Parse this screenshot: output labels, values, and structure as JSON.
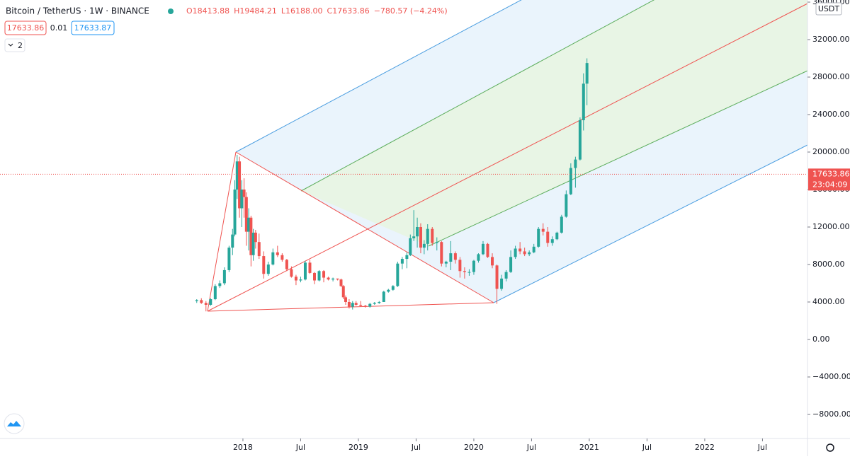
{
  "header": {
    "symbol": "Bitcoin / TetherUS · 1W · BINANCE",
    "ohlc": [
      "O18413.88",
      "H19484.21",
      "L16188.00",
      "C17633.86",
      "−780.57 (−4.24%)"
    ],
    "bid": "17633.86",
    "spread": "0.01",
    "ask": "17633.87",
    "indicators": "2"
  },
  "chart_data": {
    "type": "candlestick",
    "currency": "USDT",
    "up_color": "#26a69a",
    "down_color": "#ef5350",
    "last_price": {
      "value": 17633.86,
      "label": "17633.86"
    },
    "countdown": "23:04:09",
    "xlim": [
      2015.896,
      2022.89
    ],
    "xticks": [
      {
        "value": 2018,
        "label": "2018"
      },
      {
        "value": 2018.5,
        "label": "Jul"
      },
      {
        "value": 2019,
        "label": "2019"
      },
      {
        "value": 2019.5,
        "label": "Jul"
      },
      {
        "value": 2020,
        "label": "2020"
      },
      {
        "value": 2020.5,
        "label": "Jul"
      },
      {
        "value": 2021,
        "label": "2021"
      },
      {
        "value": 2021.5,
        "label": "Jul"
      },
      {
        "value": 2022,
        "label": "2022"
      },
      {
        "value": 2022.5,
        "label": "Jul"
      }
    ],
    "ylim": [
      -10566,
      36226
    ],
    "yticks": [
      {
        "value": -8000,
        "label": "−8000.00"
      },
      {
        "value": -4000,
        "label": "−4000.00"
      },
      {
        "value": 0,
        "label": "0.00"
      },
      {
        "value": 4000,
        "label": "4000.00"
      },
      {
        "value": 8000,
        "label": "8000.00"
      },
      {
        "value": 12000,
        "label": "12000.00"
      },
      {
        "value": 16000,
        "label": "16000.00"
      },
      {
        "value": 20000,
        "label": "20000.00"
      },
      {
        "value": 24000,
        "label": "24000.00"
      },
      {
        "value": 28000,
        "label": "28000.00"
      },
      {
        "value": 32000,
        "label": "32000.00"
      },
      {
        "value": 36000,
        "label": "36000.00"
      }
    ],
    "x": [
      2017.6,
      2017.64,
      2017.68,
      2017.72,
      2017.76,
      2017.8,
      2017.84,
      2017.88,
      2017.91,
      2017.93,
      2017.95,
      2017.97,
      2017.99,
      2018.01,
      2018.03,
      2018.05,
      2018.07,
      2018.09,
      2018.11,
      2018.14,
      2018.18,
      2018.22,
      2018.26,
      2018.3,
      2018.34,
      2018.38,
      2018.42,
      2018.46,
      2018.5,
      2018.54,
      2018.58,
      2018.62,
      2018.66,
      2018.7,
      2018.74,
      2018.78,
      2018.82,
      2018.85,
      2018.87,
      2018.89,
      2018.92,
      2018.95,
      2018.98,
      2019.02,
      2019.06,
      2019.1,
      2019.14,
      2019.18,
      2019.22,
      2019.26,
      2019.3,
      2019.34,
      2019.38,
      2019.42,
      2019.45,
      2019.48,
      2019.51,
      2019.54,
      2019.57,
      2019.6,
      2019.64,
      2019.68,
      2019.72,
      2019.76,
      2019.8,
      2019.84,
      2019.88,
      2019.92,
      2019.96,
      2020.0,
      2020.04,
      2020.08,
      2020.12,
      2020.16,
      2020.2,
      2020.24,
      2020.28,
      2020.32,
      2020.36,
      2020.4,
      2020.44,
      2020.48,
      2020.52,
      2020.56,
      2020.6,
      2020.64,
      2020.68,
      2020.72,
      2020.76,
      2020.8,
      2020.84,
      2020.88,
      2020.92,
      2020.95,
      2020.98
    ],
    "open": [
      4100,
      4200,
      3900,
      3700,
      4300,
      5700,
      6000,
      7400,
      9800,
      11200,
      16000,
      19000,
      14000,
      16000,
      15200,
      11500,
      13000,
      9000,
      11400,
      10400,
      8900,
      7000,
      8000,
      9300,
      9000,
      8500,
      7500,
      6700,
      6300,
      6400,
      8200,
      7100,
      6300,
      7300,
      6600,
      6400,
      6500,
      6400,
      5700,
      4500,
      4000,
      3500,
      3900,
      3700,
      3600,
      3500,
      3800,
      3900,
      4000,
      5100,
      5300,
      5700,
      8100,
      8600,
      9000,
      10800,
      11000,
      12000,
      9800,
      10200,
      11800,
      10300,
      10400,
      8100,
      8300,
      9200,
      8500,
      7300,
      7200,
      7200,
      8400,
      9100,
      10200,
      8800,
      7900,
      5400,
      6500,
      7200,
      8800,
      9700,
      9400,
      9100,
      9300,
      9900,
      11800,
      11500,
      10300,
      10700,
      11400,
      13100,
      15500,
      18300,
      19200,
      23400,
      27300
    ],
    "high": [
      4300,
      4400,
      4100,
      4400,
      5900,
      6300,
      7700,
      10000,
      11800,
      17000,
      19700,
      19500,
      17000,
      17200,
      15700,
      14000,
      13200,
      11800,
      11700,
      11300,
      9400,
      8300,
      9700,
      10000,
      9200,
      8600,
      7800,
      6900,
      6700,
      8400,
      8500,
      7200,
      7400,
      7400,
      6700,
      6600,
      6500,
      6500,
      5800,
      4700,
      4300,
      4100,
      4100,
      4100,
      3700,
      3900,
      4000,
      4100,
      5200,
      5400,
      5800,
      8300,
      8800,
      9300,
      11200,
      13800,
      13000,
      12400,
      10600,
      12300,
      12000,
      10900,
      10500,
      8400,
      10500,
      9400,
      8800,
      7700,
      7500,
      8500,
      9200,
      10500,
      10300,
      9200,
      8000,
      6900,
      7400,
      9500,
      10000,
      10400,
      9800,
      9500,
      10200,
      12000,
      12400,
      12000,
      11000,
      11500,
      13300,
      15900,
      18800,
      19500,
      23700,
      28400,
      30000
    ],
    "low": [
      3900,
      3800,
      3000,
      3600,
      4200,
      5500,
      5800,
      7200,
      9000,
      11000,
      15000,
      13000,
      12000,
      13000,
      10000,
      9500,
      7800,
      8400,
      9700,
      8600,
      6500,
      6800,
      7900,
      8800,
      8300,
      7300,
      6600,
      5800,
      6100,
      6300,
      7000,
      5900,
      6200,
      6100,
      6300,
      6200,
      6300,
      5600,
      4300,
      3700,
      3300,
      3200,
      3600,
      3500,
      3400,
      3400,
      3700,
      3800,
      4000,
      5000,
      5200,
      5600,
      7500,
      7600,
      8900,
      10500,
      9800,
      9200,
      9100,
      9500,
      10000,
      9500,
      7800,
      7700,
      7400,
      8100,
      6600,
      6500,
      6800,
      6900,
      8200,
      9000,
      8700,
      7600,
      3800,
      5200,
      6200,
      7100,
      8600,
      9100,
      8900,
      8900,
      9200,
      9800,
      11100,
      9900,
      10000,
      10600,
      11300,
      13000,
      15400,
      16200,
      19100,
      22300,
      25000
    ],
    "close": [
      4200,
      3900,
      3700,
      4300,
      5700,
      6000,
      7400,
      9800,
      11200,
      16000,
      19000,
      14000,
      16000,
      15200,
      11500,
      13000,
      9000,
      11400,
      10400,
      8900,
      7000,
      8000,
      9300,
      9000,
      8500,
      7500,
      6700,
      6300,
      6400,
      8200,
      7100,
      6300,
      7300,
      6600,
      6400,
      6500,
      6400,
      5700,
      4500,
      4000,
      3500,
      3900,
      3700,
      3600,
      3500,
      3800,
      3900,
      4000,
      5100,
      5300,
      5700,
      8100,
      8600,
      9000,
      10800,
      11000,
      12000,
      9800,
      10200,
      11800,
      10300,
      10400,
      8100,
      8300,
      9200,
      8500,
      7300,
      7200,
      7200,
      8400,
      9100,
      10200,
      8800,
      7900,
      5400,
      6500,
      7200,
      8800,
      9700,
      9400,
      9100,
      9300,
      9900,
      11800,
      11500,
      10300,
      10700,
      11400,
      13100,
      15500,
      18300,
      19200,
      23400,
      27300,
      29500
    ]
  }
}
